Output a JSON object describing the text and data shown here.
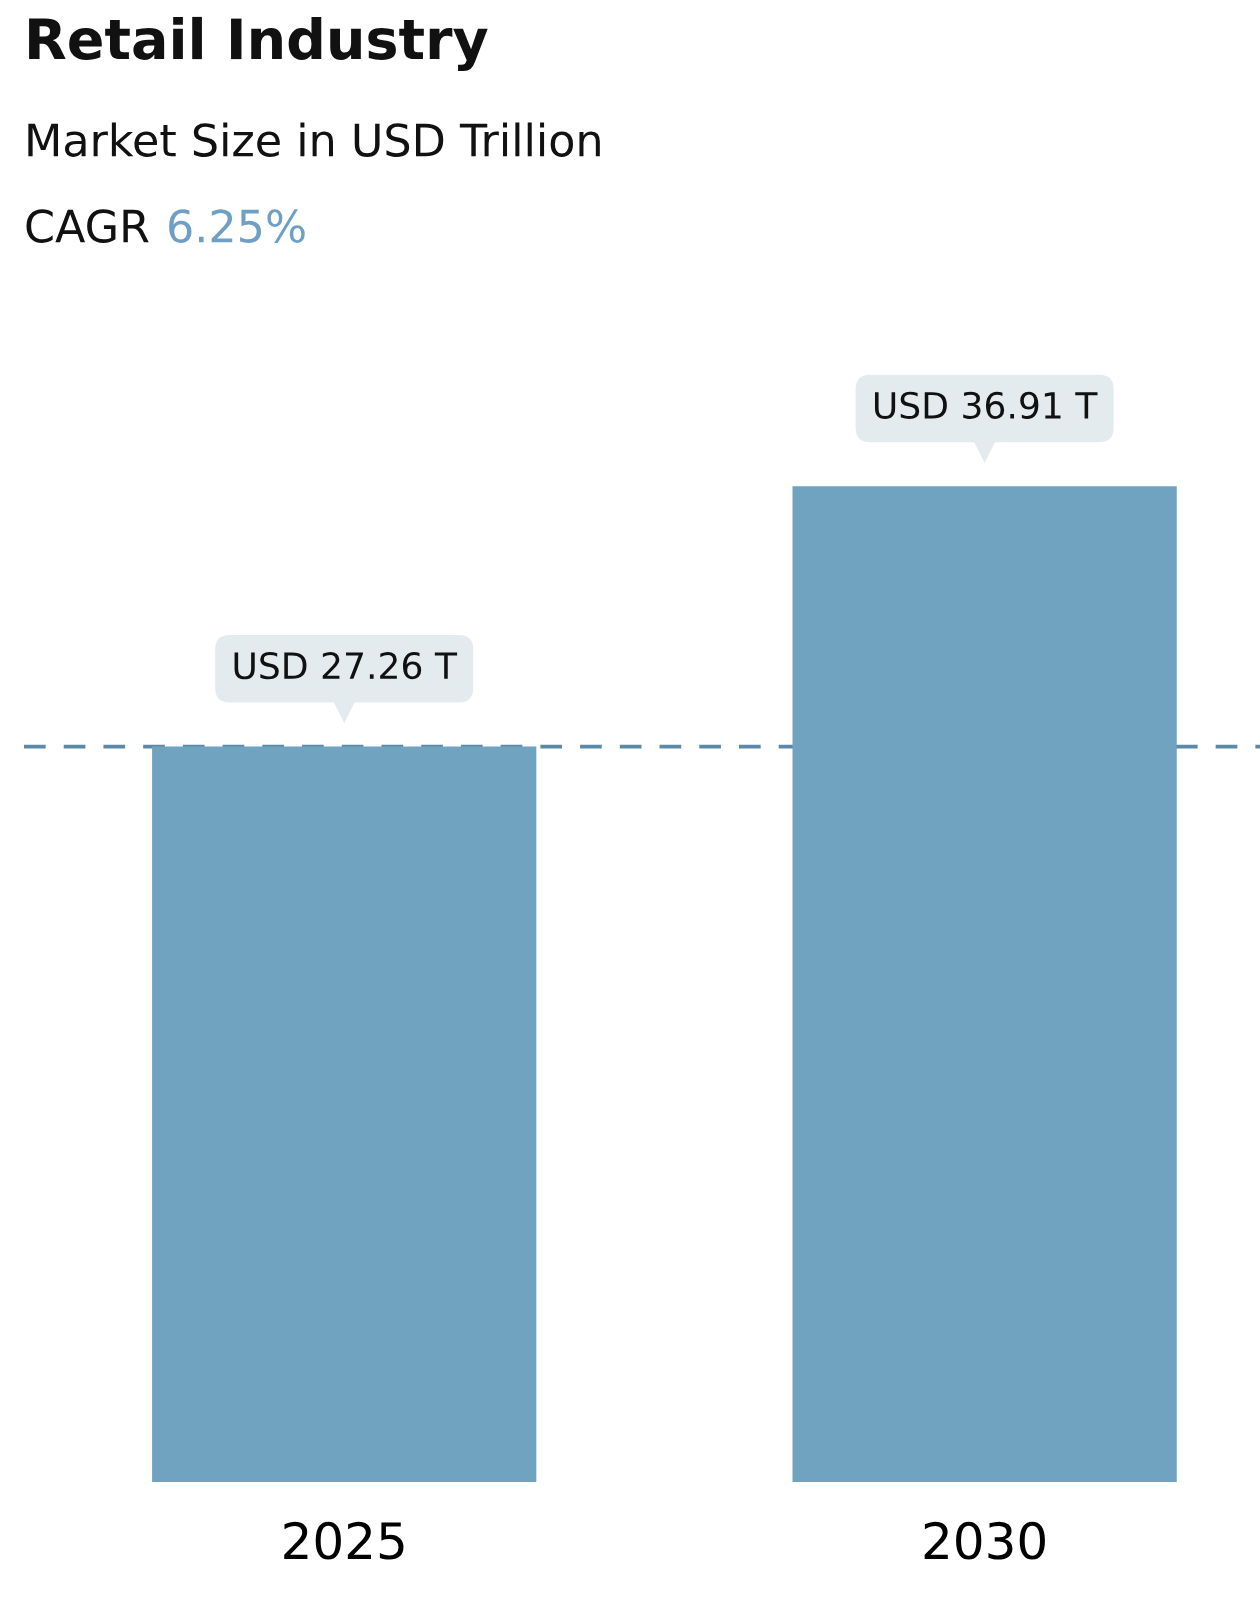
{
  "chart_data": {
    "type": "bar",
    "title": "Retail Industry",
    "subtitle": "Market Size in USD Trillion",
    "annotations": [
      "CAGR",
      "6.25%"
    ],
    "categories": [
      "2025",
      "2030"
    ],
    "values": [
      27.26,
      36.91
    ],
    "value_labels": [
      "USD 27.26 T",
      "USD 36.91 T"
    ],
    "colors": [
      "#6fa3c0",
      "#6fa3c0"
    ],
    "ref_lines": [
      {
        "axis": "y",
        "value": 27.26,
        "color": "#5b8aa8",
        "line_style": "dashed"
      }
    ],
    "tick_labels": "x",
    "grid": false
  }
}
